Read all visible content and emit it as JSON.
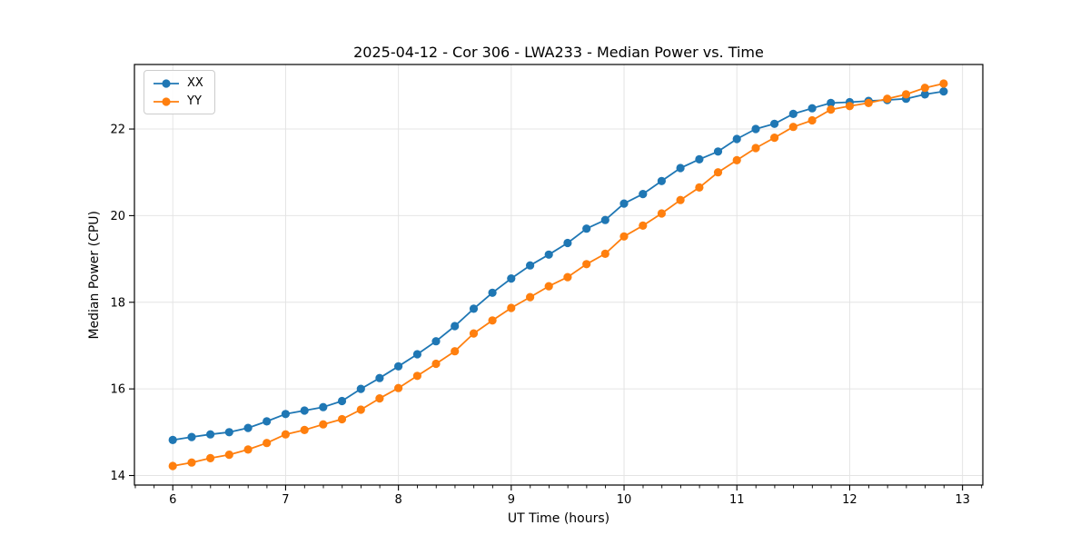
{
  "chart_data": {
    "type": "line",
    "title": "2025-04-12 - Cor 306 - LWA233 - Median Power vs. Time",
    "xlabel": "UT Time (hours)",
    "ylabel": "Median Power (CPU)",
    "xlim": [
      5.66,
      13.18
    ],
    "ylim": [
      13.78,
      23.49
    ],
    "x_ticks": [
      6,
      7,
      8,
      9,
      10,
      11,
      12,
      13
    ],
    "y_ticks": [
      14,
      16,
      18,
      20,
      22
    ],
    "x_minor_step": 0.1667,
    "grid": true,
    "grid_color": "#e4e4e4",
    "spine_color": "#000000",
    "legend_position": "upper-left",
    "x": [
      6.0,
      6.167,
      6.333,
      6.5,
      6.667,
      6.833,
      7.0,
      7.167,
      7.333,
      7.5,
      7.667,
      7.833,
      8.0,
      8.167,
      8.333,
      8.5,
      8.667,
      8.833,
      9.0,
      9.167,
      9.333,
      9.5,
      9.667,
      9.833,
      10.0,
      10.167,
      10.333,
      10.5,
      10.667,
      10.833,
      11.0,
      11.167,
      11.333,
      11.5,
      11.667,
      11.833,
      12.0,
      12.167,
      12.333,
      12.5,
      12.667,
      12.833
    ],
    "series": [
      {
        "name": "XX",
        "color": "#1f77b4",
        "marker": "circle",
        "values": [
          14.82,
          14.89,
          14.95,
          15.0,
          15.1,
          15.25,
          15.42,
          15.5,
          15.58,
          15.72,
          16.0,
          16.25,
          16.52,
          16.8,
          17.1,
          17.45,
          17.85,
          18.22,
          18.55,
          18.85,
          19.1,
          19.37,
          19.7,
          19.9,
          20.28,
          20.5,
          20.8,
          21.1,
          21.3,
          21.48,
          21.77,
          22.0,
          22.12,
          22.35,
          22.48,
          22.6,
          22.62,
          22.65,
          22.67,
          22.7,
          22.8,
          22.87
        ]
      },
      {
        "name": "YY",
        "color": "#ff7f0e",
        "marker": "circle",
        "values": [
          14.22,
          14.3,
          14.4,
          14.48,
          14.6,
          14.75,
          14.95,
          15.05,
          15.18,
          15.3,
          15.52,
          15.78,
          16.02,
          16.3,
          16.58,
          16.87,
          17.28,
          17.58,
          17.87,
          18.12,
          18.37,
          18.58,
          18.88,
          19.12,
          19.52,
          19.77,
          20.05,
          20.36,
          20.65,
          21.0,
          21.28,
          21.56,
          21.8,
          22.05,
          22.2,
          22.45,
          22.53,
          22.6,
          22.7,
          22.8,
          22.95,
          23.05
        ]
      }
    ]
  }
}
